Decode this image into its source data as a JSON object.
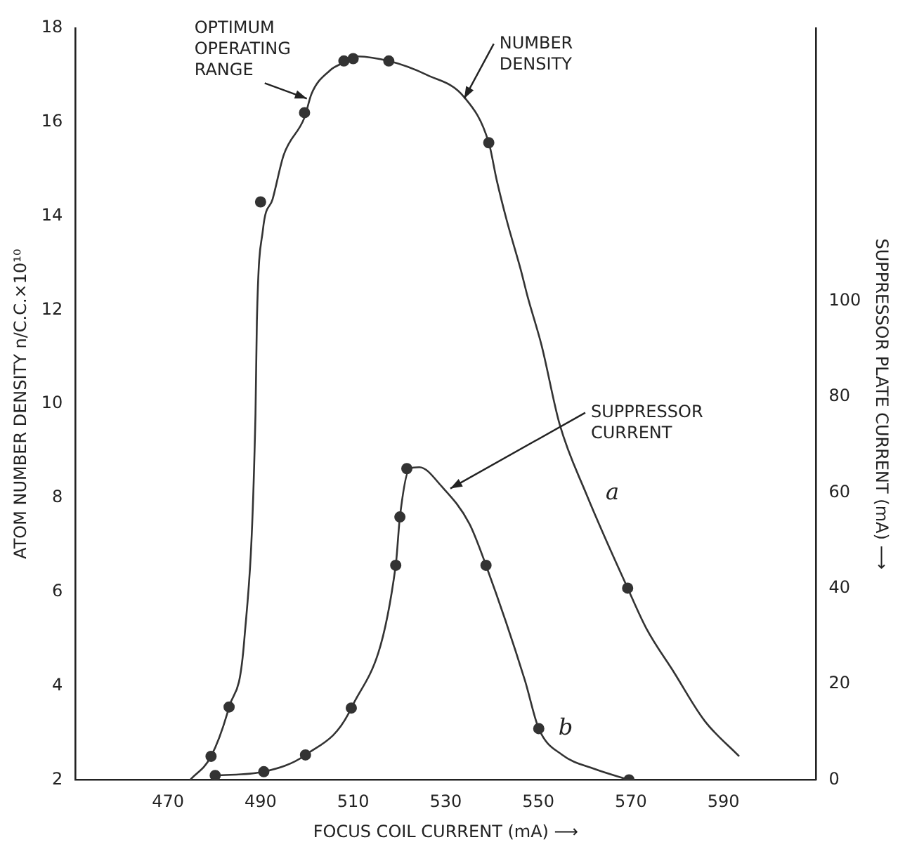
{
  "chart_data": {
    "type": "line",
    "xlabel": "FOCUS COIL CURRENT (mA) ⟶",
    "ylabel": "ATOM NUMBER DENSITY n/C.C.×10¹⁰",
    "y2label": "SUPPRESSOR PLATE CURRENT (mA) ⟶",
    "xlim": [
      450,
      610
    ],
    "xticks": [
      470,
      490,
      510,
      530,
      550,
      570,
      590
    ],
    "ylim": [
      2,
      18
    ],
    "yticks": [
      2,
      4,
      6,
      8,
      10,
      12,
      14,
      16,
      18
    ],
    "y2lim": [
      0,
      157
    ],
    "y2ticks": [
      0,
      20,
      40,
      60,
      80,
      100
    ],
    "grid": false,
    "legend": false,
    "annotations": [
      {
        "text": "OPTIMUM OPERATING RANGE",
        "x": 500,
        "y": 16.5
      },
      {
        "text": "NUMBER DENSITY",
        "x": 534,
        "y": 16.5
      },
      {
        "text": "SUPPRESSOR CURRENT",
        "x": 531,
        "y": 8.2
      }
    ],
    "series": [
      {
        "name": "a",
        "marker": "none",
        "color": "#333333",
        "x": [
          474.8,
          479.3,
          483.2,
          486.5,
          488.9,
          489.2,
          490.5,
          492.6,
          495,
          499.5,
          501,
          505,
          508,
          510.2,
          517.7,
          526,
          534,
          539.3,
          541,
          543.2,
          546.2,
          547.7,
          550.7,
          554.6,
          560.3,
          569.3,
          573.3,
          579.3,
          585.9,
          593.4
        ],
        "values": [
          2,
          2.5,
          3.55,
          5,
          9.78,
          11.75,
          13.7,
          14.36,
          15.3,
          16.1,
          16.6,
          17.1,
          17.27,
          17.4,
          17.3,
          17.0,
          16.53,
          15.56,
          14.77,
          13.9,
          12.86,
          12.28,
          11.25,
          9.57,
          8.1,
          6.08,
          5.23,
          4.29,
          3.26,
          2.5
        ]
      },
      {
        "name": "b",
        "marker": "none",
        "axis": "y2",
        "color": "#333333",
        "x": [
          480.2,
          490.7,
          499.7,
          509.6,
          519.2,
          520.1,
          522.2,
          524.3,
          529.1,
          535.1,
          538.7,
          547.1,
          550.1,
          555.2,
          562.1,
          569.6
        ],
        "values": [
          0.9,
          1.7,
          5.2,
          15,
          44.8,
          54.9,
          65,
          65.3,
          61.3,
          53.5,
          44.8,
          20.8,
          10.7,
          5.2,
          2.3,
          0
        ]
      },
      {
        "type": "scatter",
        "marker": "circle",
        "color": "#333333",
        "x": [
          479.3,
          483.2,
          490,
          499.5,
          508,
          510,
          517.7,
          539.3,
          569.3
        ],
        "values": [
          2.5,
          3.55,
          14.3,
          16.2,
          17.3,
          17.35,
          17.3,
          15.56,
          6.08
        ]
      },
      {
        "type": "scatter",
        "marker": "circle",
        "axis": "y2",
        "color": "#333333",
        "x": [
          480.2,
          490.7,
          499.7,
          509.6,
          519.2,
          520.1,
          521.6,
          538.7,
          550.1,
          569.6
        ],
        "values": [
          0.9,
          1.7,
          5.2,
          15,
          44.8,
          54.9,
          65,
          44.8,
          10.7,
          0
        ]
      }
    ]
  }
}
